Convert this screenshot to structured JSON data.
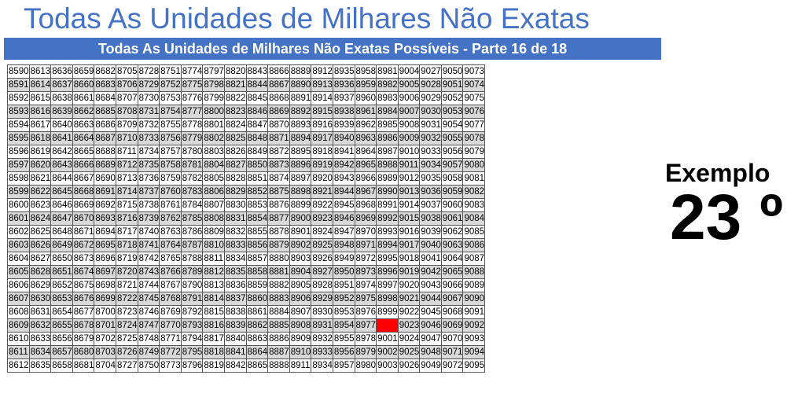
{
  "page_title": "Todas As Unidades de Milhares Não Exatas",
  "banner": "Todas As Unidades de Milhares Não Exatas Possíveis - Parte 16 de 18",
  "exemplo_label": "Exemplo",
  "exemplo_number": "23 º",
  "colors": {
    "title": "#4472C4",
    "banner_bg": "#4472C4",
    "banner_text": "#ffffff",
    "shade": "#d9d9d9",
    "highlight": "#ff0000"
  },
  "grid": {
    "rows": [
      [
        "8590",
        "8613",
        "8636",
        "8659",
        "8682",
        "8705",
        "8728",
        "8751",
        "8774",
        "8797",
        "8820",
        "8843",
        "8866",
        "8889",
        "8912",
        "8935",
        "8958",
        "8981",
        "9004",
        "9027",
        "9050",
        "9073"
      ],
      [
        "8591",
        "8614",
        "8637",
        "8660",
        "8683",
        "8706",
        "8729",
        "8752",
        "8775",
        "8798",
        "8821",
        "8844",
        "8867",
        "8890",
        "8913",
        "8936",
        "8959",
        "8982",
        "9005",
        "9028",
        "9051",
        "9074"
      ],
      [
        "8592",
        "8615",
        "8638",
        "8661",
        "8684",
        "8707",
        "8730",
        "8753",
        "8776",
        "8799",
        "8822",
        "8845",
        "8868",
        "8891",
        "8914",
        "8937",
        "8960",
        "8983",
        "9006",
        "9029",
        "9052",
        "9075"
      ],
      [
        "8593",
        "8616",
        "8639",
        "8662",
        "8685",
        "8708",
        "8731",
        "8754",
        "8777",
        "8800",
        "8823",
        "8846",
        "8869",
        "8892",
        "8915",
        "8938",
        "8961",
        "8984",
        "9007",
        "9030",
        "9053",
        "9076"
      ],
      [
        "8594",
        "8617",
        "8640",
        "8663",
        "8686",
        "8709",
        "8732",
        "8755",
        "8778",
        "8801",
        "8824",
        "8847",
        "8870",
        "8893",
        "8916",
        "8939",
        "8962",
        "8985",
        "9008",
        "9031",
        "9054",
        "9077"
      ],
      [
        "8595",
        "8618",
        "8641",
        "8664",
        "8687",
        "8710",
        "8733",
        "8756",
        "8779",
        "8802",
        "8825",
        "8848",
        "8871",
        "8894",
        "8917",
        "8940",
        "8963",
        "8986",
        "9009",
        "9032",
        "9055",
        "9078"
      ],
      [
        "8596",
        "8619",
        "8642",
        "8665",
        "8688",
        "8711",
        "8734",
        "8757",
        "8780",
        "8803",
        "8826",
        "8849",
        "8872",
        "8895",
        "8918",
        "8941",
        "8964",
        "8987",
        "9010",
        "9033",
        "9056",
        "9079"
      ],
      [
        "8597",
        "8620",
        "8643",
        "8666",
        "8689",
        "8712",
        "8735",
        "8758",
        "8781",
        "8804",
        "8827",
        "8850",
        "8873",
        "8896",
        "8919",
        "8942",
        "8965",
        "8988",
        "9011",
        "9034",
        "9057",
        "9080"
      ],
      [
        "8598",
        "8621",
        "8644",
        "8667",
        "8690",
        "8713",
        "8736",
        "8759",
        "8782",
        "8805",
        "8828",
        "8851",
        "8874",
        "8897",
        "8920",
        "8943",
        "8966",
        "8989",
        "9012",
        "9035",
        "9058",
        "9081"
      ],
      [
        "8599",
        "8622",
        "8645",
        "8668",
        "8691",
        "8714",
        "8737",
        "8760",
        "8783",
        "8806",
        "8829",
        "8852",
        "8875",
        "8898",
        "8921",
        "8944",
        "8967",
        "8990",
        "9013",
        "9036",
        "9059",
        "9082"
      ],
      [
        "8600",
        "8623",
        "8646",
        "8669",
        "8692",
        "8715",
        "8738",
        "8761",
        "8784",
        "8807",
        "8830",
        "8853",
        "8876",
        "8899",
        "8922",
        "8945",
        "8968",
        "8991",
        "9014",
        "9037",
        "9060",
        "9083"
      ],
      [
        "8601",
        "8624",
        "8647",
        "8670",
        "8693",
        "8716",
        "8739",
        "8762",
        "8785",
        "8808",
        "8831",
        "8854",
        "8877",
        "8900",
        "8923",
        "8946",
        "8969",
        "8992",
        "9015",
        "9038",
        "9061",
        "9084"
      ],
      [
        "8602",
        "8625",
        "8648",
        "8671",
        "8694",
        "8717",
        "8740",
        "8763",
        "8786",
        "8809",
        "8832",
        "8855",
        "8878",
        "8901",
        "8924",
        "8947",
        "8970",
        "8993",
        "9016",
        "9039",
        "9062",
        "9085"
      ],
      [
        "8603",
        "8626",
        "8649",
        "8672",
        "8695",
        "8718",
        "8741",
        "8764",
        "8787",
        "8810",
        "8833",
        "8856",
        "8879",
        "8902",
        "8925",
        "8948",
        "8971",
        "8994",
        "9017",
        "9040",
        "9063",
        "9086"
      ],
      [
        "8604",
        "8627",
        "8650",
        "8673",
        "8696",
        "8719",
        "8742",
        "8765",
        "8788",
        "8811",
        "8834",
        "8857",
        "8880",
        "8903",
        "8926",
        "8949",
        "8972",
        "8995",
        "9018",
        "9041",
        "9064",
        "9087"
      ],
      [
        "8605",
        "8628",
        "8651",
        "8674",
        "8697",
        "8720",
        "8743",
        "8766",
        "8789",
        "8812",
        "8835",
        "8858",
        "8881",
        "8904",
        "8927",
        "8950",
        "8973",
        "8996",
        "9019",
        "9042",
        "9065",
        "9088"
      ],
      [
        "8606",
        "8629",
        "8652",
        "8675",
        "8698",
        "8721",
        "8744",
        "8767",
        "8790",
        "8813",
        "8836",
        "8859",
        "8882",
        "8905",
        "8928",
        "8951",
        "8974",
        "8997",
        "9020",
        "9043",
        "9066",
        "9089"
      ],
      [
        "8607",
        "8630",
        "8653",
        "8676",
        "8699",
        "8722",
        "8745",
        "8768",
        "8791",
        "8814",
        "8837",
        "8860",
        "8883",
        "8906",
        "8929",
        "8952",
        "8975",
        "8998",
        "9021",
        "9044",
        "9067",
        "9090"
      ],
      [
        "8608",
        "8631",
        "8654",
        "8677",
        "8700",
        "8723",
        "8746",
        "8769",
        "8792",
        "8815",
        "8838",
        "8861",
        "8884",
        "8907",
        "8930",
        "8953",
        "8976",
        "8999",
        "9022",
        "9045",
        "9068",
        "9091"
      ],
      [
        "8609",
        "8632",
        "8655",
        "8678",
        "8701",
        "8724",
        "8747",
        "8770",
        "8793",
        "8816",
        "8839",
        "8862",
        "8885",
        "8908",
        "8931",
        "8954",
        "8977",
        "",
        "9023",
        "9046",
        "9069",
        "9092"
      ],
      [
        "8610",
        "8633",
        "8656",
        "8679",
        "8702",
        "8725",
        "8748",
        "8771",
        "8794",
        "8817",
        "8840",
        "8863",
        "8886",
        "8909",
        "8932",
        "8955",
        "8978",
        "9001",
        "9024",
        "9047",
        "9070",
        "9093"
      ],
      [
        "8611",
        "8634",
        "8657",
        "8680",
        "8703",
        "8726",
        "8749",
        "8772",
        "8795",
        "8818",
        "8841",
        "8864",
        "8887",
        "8910",
        "8933",
        "8956",
        "8979",
        "9002",
        "9025",
        "9048",
        "9071",
        "9094"
      ],
      [
        "8612",
        "8635",
        "8658",
        "8681",
        "8704",
        "8727",
        "8750",
        "8773",
        "8796",
        "8819",
        "8842",
        "8865",
        "8888",
        "8911",
        "8934",
        "8957",
        "8980",
        "9003",
        "9026",
        "9049",
        "9072",
        "9095"
      ]
    ]
  }
}
